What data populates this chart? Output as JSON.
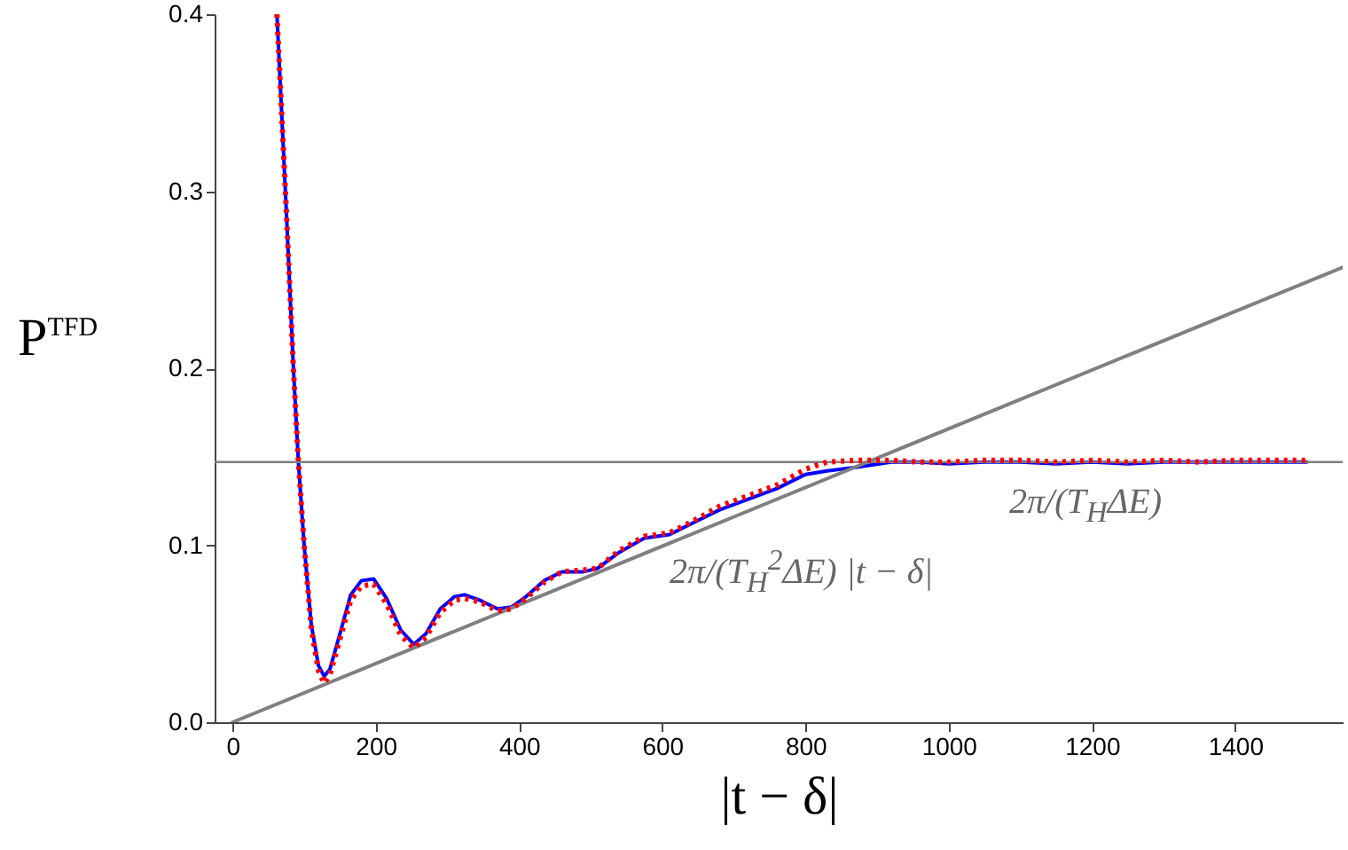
{
  "chart_data": {
    "type": "line",
    "xlabel": "|t − δ|",
    "ylabel": "P$^{TFD}$",
    "xlim": [
      -25,
      1550
    ],
    "ylim": [
      0,
      0.4
    ],
    "xticks": [
      0,
      200,
      400,
      600,
      800,
      1000,
      1200,
      1400
    ],
    "yticks": [
      {
        "value": 0,
        "label": "0.0"
      },
      0.1,
      0.2,
      0.3,
      0.4
    ],
    "grid": false,
    "marker": "none",
    "series": [
      {
        "color": "#0000ff",
        "line_style": "solid",
        "x": [
          62,
          75,
          85,
          92,
          100,
          110,
          120,
          128,
          136,
          150,
          165,
          180,
          197,
          215,
          235,
          253,
          270,
          290,
          310,
          324,
          345,
          370,
          389,
          410,
          435,
          460,
          490,
          510,
          540,
          575,
          610,
          640,
          680,
          720,
          760,
          800,
          830,
          870,
          920,
          960,
          1000,
          1050,
          1100,
          1150,
          1200,
          1250,
          1300,
          1350,
          1400,
          1450,
          1500
        ],
        "values": [
          0.4,
          0.29,
          0.2,
          0.147,
          0.1,
          0.055,
          0.032,
          0.026,
          0.03,
          0.05,
          0.072,
          0.08,
          0.081,
          0.07,
          0.052,
          0.044,
          0.05,
          0.064,
          0.071,
          0.072,
          0.069,
          0.064,
          0.065,
          0.071,
          0.08,
          0.085,
          0.085,
          0.087,
          0.096,
          0.104,
          0.106,
          0.112,
          0.12,
          0.126,
          0.132,
          0.14,
          0.142,
          0.144,
          0.147,
          0.147,
          0.146,
          0.147,
          0.147,
          0.146,
          0.147,
          0.146,
          0.147,
          0.147,
          0.147,
          0.147,
          0.147
        ]
      },
      {
        "color": "#ff0000",
        "line_style": "dotted",
        "x": [
          62,
          75,
          85,
          92,
          100,
          110,
          120,
          128,
          136,
          150,
          165,
          180,
          197,
          215,
          235,
          253,
          270,
          290,
          310,
          324,
          345,
          370,
          389,
          410,
          435,
          460,
          490,
          510,
          540,
          575,
          610,
          640,
          680,
          720,
          760,
          800,
          830,
          870,
          920,
          960,
          1000,
          1050,
          1100,
          1150,
          1200,
          1250,
          1300,
          1350,
          1400,
          1450,
          1500
        ],
        "values": [
          0.4,
          0.29,
          0.2,
          0.147,
          0.1,
          0.053,
          0.029,
          0.022,
          0.027,
          0.047,
          0.069,
          0.077,
          0.078,
          0.067,
          0.049,
          0.042,
          0.048,
          0.062,
          0.069,
          0.07,
          0.068,
          0.063,
          0.064,
          0.07,
          0.079,
          0.085,
          0.086,
          0.087,
          0.097,
          0.105,
          0.107,
          0.113,
          0.122,
          0.128,
          0.134,
          0.143,
          0.147,
          0.148,
          0.148,
          0.147,
          0.147,
          0.148,
          0.148,
          0.147,
          0.148,
          0.147,
          0.148,
          0.147,
          0.148,
          0.148,
          0.148
        ]
      },
      {
        "type": "line",
        "color": "#808080",
        "line_style": "solid",
        "x": [
          0,
          1550
        ],
        "values": [
          0,
          0.257
        ]
      }
    ],
    "ref_lines": [
      {
        "axis": "y",
        "value": 0.147,
        "color": "#808080"
      }
    ],
    "annotations": [
      "2π/(T$_{H}$$^{2}$ΔE) |t − δ|",
      "2π/(T$_{H}$ΔE)"
    ]
  }
}
